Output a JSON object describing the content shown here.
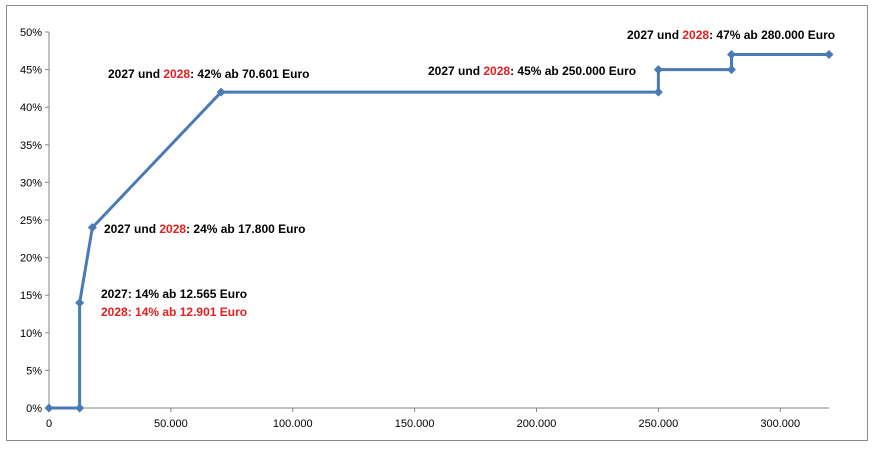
{
  "chart_data": {
    "type": "line",
    "title": "",
    "xlabel": "",
    "ylabel": "",
    "xlim": [
      0,
      320000
    ],
    "ylim": [
      0,
      0.5
    ],
    "x_ticks": [
      0,
      50000,
      100000,
      150000,
      200000,
      250000,
      300000
    ],
    "x_tick_labels": [
      "0",
      "50.000",
      "100.000",
      "150.000",
      "200.000",
      "250.000",
      "300.000"
    ],
    "y_ticks": [
      0,
      0.05,
      0.1,
      0.15,
      0.2,
      0.25,
      0.3,
      0.35,
      0.4,
      0.45,
      0.5
    ],
    "y_tick_labels": [
      "0%",
      "5%",
      "10%",
      "15%",
      "20%",
      "25%",
      "30%",
      "35%",
      "40%",
      "45%",
      "50%"
    ],
    "grid": false,
    "series": [
      {
        "color": "#4a7ab5",
        "x": [
          0,
          12565,
          12565,
          17800,
          70601,
          250000,
          250000,
          280000,
          280000,
          320000
        ],
        "y": [
          0,
          0,
          0.14,
          0.24,
          0.42,
          0.42,
          0.45,
          0.45,
          0.47,
          0.47
        ]
      }
    ],
    "annotations": [
      {
        "id": "a2027-14",
        "parts": [
          {
            "text": "2027: 14% ab 12.565  Euro",
            "color": "#000000"
          }
        ]
      },
      {
        "id": "a2028-14",
        "parts": [
          {
            "text": "2028: 14% ab 12.901  Euro",
            "color": "#e41e1e"
          }
        ]
      },
      {
        "id": "a24",
        "parts": [
          {
            "text": "2027 und ",
            "color": "#000000"
          },
          {
            "text": "2028",
            "color": "#e41e1e"
          },
          {
            "text": ": 24% ab 17.800  Euro",
            "color": "#000000"
          }
        ]
      },
      {
        "id": "a42",
        "parts": [
          {
            "text": "2027 und ",
            "color": "#000000"
          },
          {
            "text": "2028",
            "color": "#e41e1e"
          },
          {
            "text": ": 42% ab 70.601  Euro",
            "color": "#000000"
          }
        ]
      },
      {
        "id": "a45",
        "parts": [
          {
            "text": "2027 und ",
            "color": "#000000"
          },
          {
            "text": "2028",
            "color": "#e41e1e"
          },
          {
            "text": ": 45% ab 250.000  Euro",
            "color": "#000000"
          }
        ]
      },
      {
        "id": "a47",
        "parts": [
          {
            "text": "2027 und ",
            "color": "#000000"
          },
          {
            "text": "2028",
            "color": "#e41e1e"
          },
          {
            "text": ": 47% ab 280.000  Euro",
            "color": "#000000"
          }
        ]
      }
    ]
  }
}
